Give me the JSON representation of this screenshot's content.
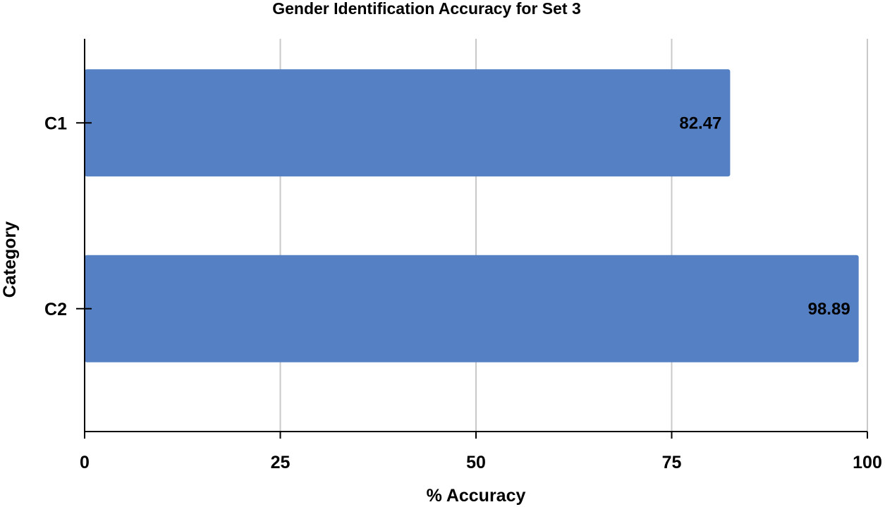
{
  "chart_data": {
    "type": "bar",
    "orientation": "horizontal",
    "title": "Gender Identification Accuracy for Set 3",
    "xlabel": "% Accuracy",
    "ylabel": "Category",
    "categories": [
      "C1",
      "C2"
    ],
    "values": [
      82.47,
      98.89
    ],
    "data_labels": [
      "82.47",
      "98.89"
    ],
    "xlim": [
      0,
      100
    ],
    "x_ticks": [
      0,
      25,
      50,
      75,
      100
    ],
    "x_tick_labels": [
      "0",
      "25",
      "50",
      "75",
      "100"
    ],
    "grid": true,
    "bar_color": "#5580c4"
  }
}
